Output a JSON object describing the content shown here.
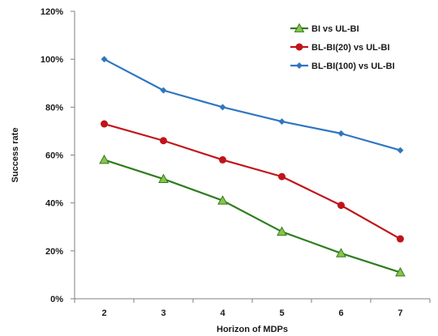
{
  "chart_data": {
    "type": "line",
    "xlabel": "Horizon of MDPs",
    "ylabel": "Success rate",
    "x": [
      2,
      3,
      4,
      5,
      6,
      7
    ],
    "xticks": [
      "2",
      "3",
      "4",
      "5",
      "6",
      "7"
    ],
    "ylim": [
      0,
      120
    ],
    "yticks": [
      "0%",
      "20%",
      "40%",
      "60%",
      "80%",
      "100%",
      "120%"
    ],
    "grid": false,
    "legend_position": "top-right",
    "series": [
      {
        "name": "BI vs UL-BI",
        "values": [
          58,
          50,
          41,
          28,
          19,
          11
        ],
        "color": "#2e7d1e",
        "marker": "triangle"
      },
      {
        "name": "BL-BI(20) vs UL-BI",
        "values": [
          73,
          66,
          58,
          51,
          39,
          25
        ],
        "color": "#c0141a",
        "marker": "circle"
      },
      {
        "name": "BL-BI(100) vs UL-BI",
        "values": [
          100,
          87,
          80,
          74,
          69,
          62
        ],
        "color": "#2f76c0",
        "marker": "diamond"
      }
    ]
  }
}
